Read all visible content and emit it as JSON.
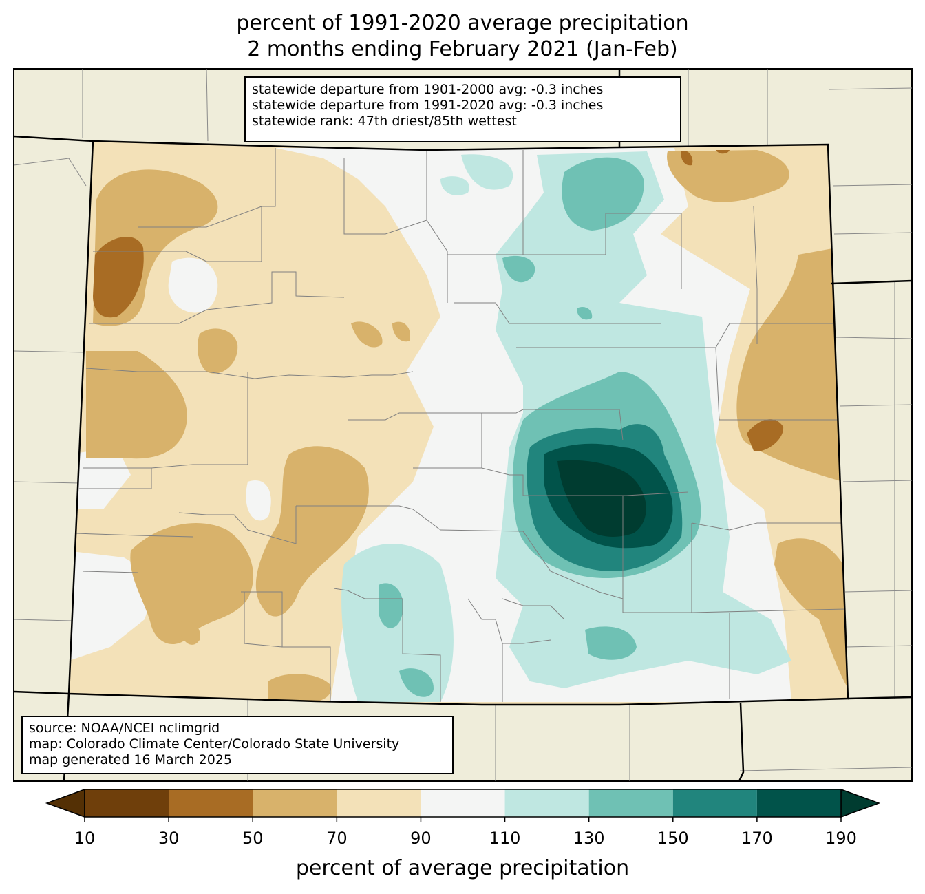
{
  "title": {
    "line1": "percent of 1991-2020 average precipitation",
    "line2": "2 months ending February 2021 (Jan-Feb)"
  },
  "stats_box": {
    "line1": "statewide departure from 1901-2000 avg: -0.3 inches",
    "line2": "statewide departure from 1991-2020 avg: -0.3 inches",
    "line3": "statewide rank: 47th driest/85th wettest"
  },
  "credits_box": {
    "line1": "source: NOAA/NCEI nclimgrid",
    "line2": "map: Colorado Climate Center/Colorado State University",
    "line3": "map generated 16 March 2025"
  },
  "colorbar": {
    "label": "percent of average precipitation",
    "ticks": [
      "10",
      "30",
      "50",
      "70",
      "90",
      "110",
      "130",
      "150",
      "170",
      "190"
    ],
    "bins": [
      {
        "range": [
          10,
          30
        ],
        "color": "#6f3f0b"
      },
      {
        "range": [
          30,
          50
        ],
        "color": "#a86c24"
      },
      {
        "range": [
          50,
          70
        ],
        "color": "#d8b26b"
      },
      {
        "range": [
          70,
          90
        ],
        "color": "#f3e1b8"
      },
      {
        "range": [
          90,
          110
        ],
        "color": "#f4f5f4"
      },
      {
        "range": [
          110,
          130
        ],
        "color": "#bfe7e1"
      },
      {
        "range": [
          130,
          150
        ],
        "color": "#6fc1b4"
      },
      {
        "range": [
          150,
          170
        ],
        "color": "#21857d"
      },
      {
        "range": [
          170,
          190
        ],
        "color": "#01534a"
      }
    ],
    "under_color": "#543005",
    "over_color": "#003c30",
    "extend": "both"
  },
  "colors": {
    "outside_land": "#efedda",
    "state_border": "#000000",
    "county_border": "#808080"
  }
}
